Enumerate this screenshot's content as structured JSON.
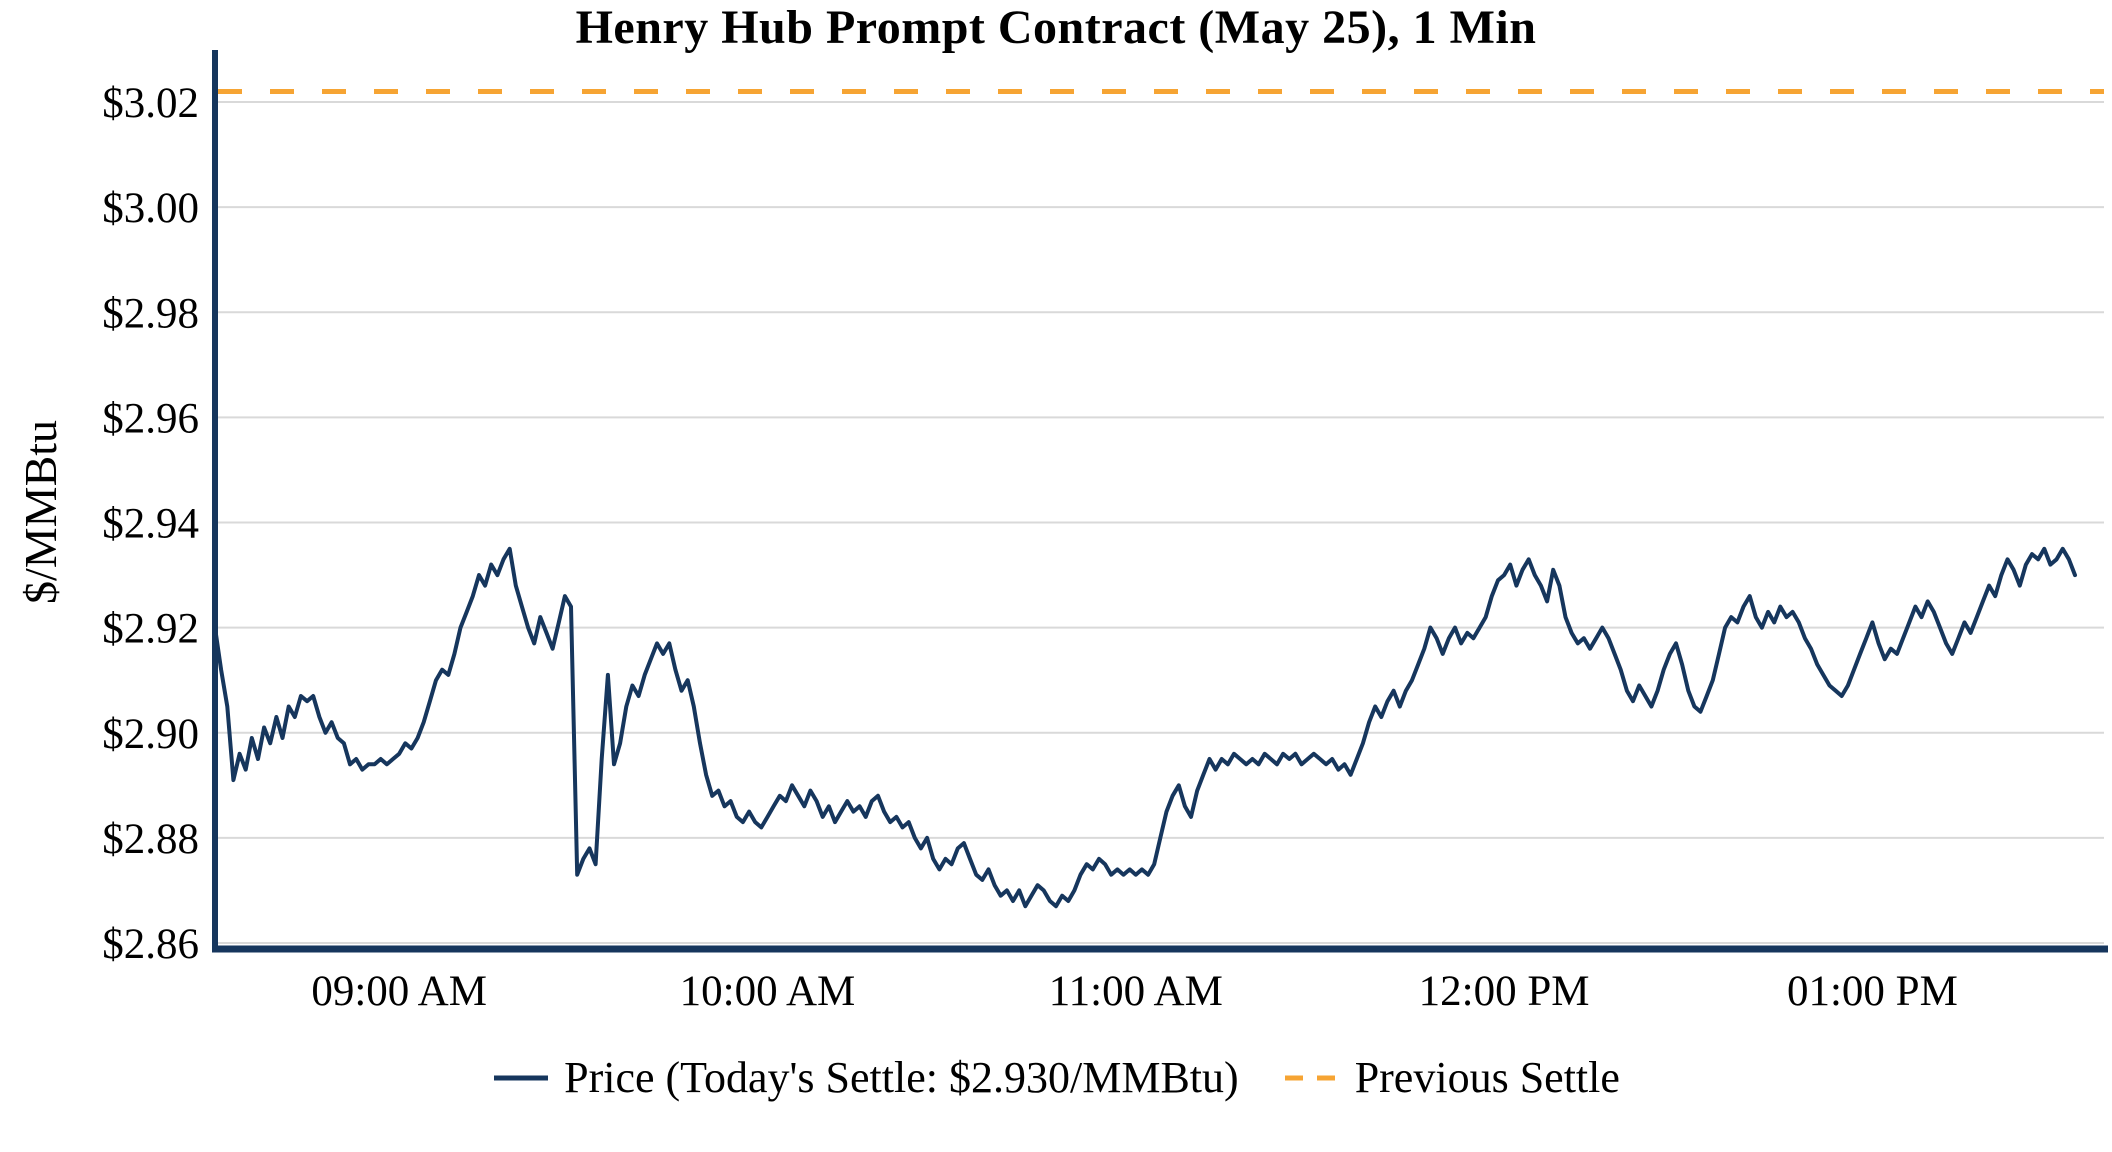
{
  "title": "Henry Hub Prompt Contract (May 25), 1 Min",
  "y_axis_label": "$/MMBtu",
  "legend": {
    "price_label": "Price (Today's Settle: $2.930/MMBtu)",
    "settle_label": "Previous Settle"
  },
  "colors": {
    "price_line": "#16365d",
    "settle_line": "#f6a433",
    "grid": "#d9d9d9",
    "axis": "#16365d",
    "text": "#000000"
  },
  "chart_data": {
    "type": "line",
    "title": "Henry Hub Prompt Contract (May 25), 1 Min",
    "ylabel": "$/MMBtu",
    "x_start": "08:30 AM",
    "x_interval_minutes": 1,
    "previous_settle": 3.022,
    "todays_settle": 2.93,
    "ylim": [
      2.86,
      3.028
    ],
    "grid": "horizontal",
    "legend_position": "bottom",
    "y_ticks": [
      {
        "value": 3.02,
        "label": "$3.02"
      },
      {
        "value": 3.0,
        "label": "$3.00"
      },
      {
        "value": 2.98,
        "label": "$2.98"
      },
      {
        "value": 2.96,
        "label": "$2.96"
      },
      {
        "value": 2.94,
        "label": "$2.94"
      },
      {
        "value": 2.92,
        "label": "$2.92"
      },
      {
        "value": 2.9,
        "label": "$2.90"
      },
      {
        "value": 2.88,
        "label": "$2.88"
      },
      {
        "value": 2.86,
        "label": "$2.86"
      }
    ],
    "x_ticks": [
      {
        "minutes_from_start": 30,
        "label": "09:00 AM"
      },
      {
        "minutes_from_start": 90,
        "label": "10:00 AM"
      },
      {
        "minutes_from_start": 150,
        "label": "11:00 AM"
      },
      {
        "minutes_from_start": 210,
        "label": "12:00 PM"
      },
      {
        "minutes_from_start": 270,
        "label": "01:00 PM"
      }
    ],
    "series_name": "Price",
    "prices": [
      2.92,
      2.912,
      2.905,
      2.891,
      2.896,
      2.893,
      2.899,
      2.895,
      2.901,
      2.898,
      2.903,
      2.899,
      2.905,
      2.903,
      2.907,
      2.906,
      2.907,
      2.903,
      2.9,
      2.902,
      2.899,
      2.898,
      2.894,
      2.895,
      2.893,
      2.894,
      2.894,
      2.895,
      2.894,
      2.895,
      2.896,
      2.898,
      2.897,
      2.899,
      2.902,
      2.906,
      2.91,
      2.912,
      2.911,
      2.915,
      2.92,
      2.923,
      2.926,
      2.93,
      2.928,
      2.932,
      2.93,
      2.933,
      2.935,
      2.928,
      2.924,
      2.92,
      2.917,
      2.922,
      2.919,
      2.916,
      2.921,
      2.926,
      2.924,
      2.873,
      2.876,
      2.878,
      2.875,
      2.895,
      2.911,
      2.894,
      2.898,
      2.905,
      2.909,
      2.907,
      2.911,
      2.914,
      2.917,
      2.915,
      2.917,
      2.912,
      2.908,
      2.91,
      2.905,
      2.898,
      2.892,
      2.888,
      2.889,
      2.886,
      2.887,
      2.884,
      2.883,
      2.885,
      2.883,
      2.882,
      2.884,
      2.886,
      2.888,
      2.887,
      2.89,
      2.888,
      2.886,
      2.889,
      2.887,
      2.884,
      2.886,
      2.883,
      2.885,
      2.887,
      2.885,
      2.886,
      2.884,
      2.887,
      2.888,
      2.885,
      2.883,
      2.884,
      2.882,
      2.883,
      2.88,
      2.878,
      2.88,
      2.876,
      2.874,
      2.876,
      2.875,
      2.878,
      2.879,
      2.876,
      2.873,
      2.872,
      2.874,
      2.871,
      2.869,
      2.87,
      2.868,
      2.87,
      2.867,
      2.869,
      2.871,
      2.87,
      2.868,
      2.867,
      2.869,
      2.868,
      2.87,
      2.873,
      2.875,
      2.874,
      2.876,
      2.875,
      2.873,
      2.874,
      2.873,
      2.874,
      2.873,
      2.874,
      2.873,
      2.875,
      2.88,
      2.885,
      2.888,
      2.89,
      2.886,
      2.884,
      2.889,
      2.892,
      2.895,
      2.893,
      2.895,
      2.894,
      2.896,
      2.895,
      2.894,
      2.895,
      2.894,
      2.896,
      2.895,
      2.894,
      2.896,
      2.895,
      2.896,
      2.894,
      2.895,
      2.896,
      2.895,
      2.894,
      2.895,
      2.893,
      2.894,
      2.892,
      2.895,
      2.898,
      2.902,
      2.905,
      2.903,
      2.906,
      2.908,
      2.905,
      2.908,
      2.91,
      2.913,
      2.916,
      2.92,
      2.918,
      2.915,
      2.918,
      2.92,
      2.917,
      2.919,
      2.918,
      2.92,
      2.922,
      2.926,
      2.929,
      2.93,
      2.932,
      2.928,
      2.931,
      2.933,
      2.93,
      2.928,
      2.925,
      2.931,
      2.928,
      2.922,
      2.919,
      2.917,
      2.918,
      2.916,
      2.918,
      2.92,
      2.918,
      2.915,
      2.912,
      2.908,
      2.906,
      2.909,
      2.907,
      2.905,
      2.908,
      2.912,
      2.915,
      2.917,
      2.913,
      2.908,
      2.905,
      2.904,
      2.907,
      2.91,
      2.915,
      2.92,
      2.922,
      2.921,
      2.924,
      2.926,
      2.922,
      2.92,
      2.923,
      2.921,
      2.924,
      2.922,
      2.923,
      2.921,
      2.918,
      2.916,
      2.913,
      2.911,
      2.909,
      2.908,
      2.907,
      2.909,
      2.912,
      2.915,
      2.918,
      2.921,
      2.917,
      2.914,
      2.916,
      2.915,
      2.918,
      2.921,
      2.924,
      2.922,
      2.925,
      2.923,
      2.92,
      2.917,
      2.915,
      2.918,
      2.921,
      2.919,
      2.922,
      2.925,
      2.928,
      2.926,
      2.93,
      2.933,
      2.931,
      2.928,
      2.932,
      2.934,
      2.933,
      2.935,
      2.932,
      2.933,
      2.935,
      2.933,
      2.93
    ]
  }
}
